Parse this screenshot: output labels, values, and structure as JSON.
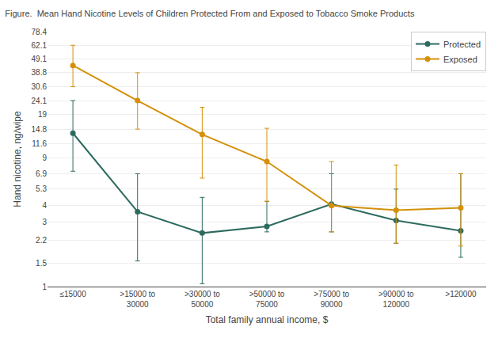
{
  "chart_data": {
    "type": "line",
    "title": "Figure.  Mean Hand Nicotine Levels of Children Protected From and Exposed to Tobacco Smoke Products",
    "xlabel": "Total family annual income, $",
    "ylabel": "Hand nicotine, ng/wipe",
    "categories": [
      "≤15000",
      ">15000 to\n30000",
      ">30000 to\n50000",
      ">50000 to\n75000",
      ">75000 to\n90000",
      ">90000 to\n120000",
      ">120000"
    ],
    "series": [
      {
        "name": "Protected",
        "color": "#2d6a5e",
        "marker": "circle",
        "line_style": "solid",
        "values": [
          13.8,
          3.6,
          2.5,
          2.8,
          4.1,
          3.1,
          2.6
        ],
        "low": [
          7.2,
          1.55,
          1.05,
          2.55,
          2.55,
          2.1,
          1.65
        ],
        "high": [
          24.1,
          6.9,
          4.6,
          4.3,
          6.9,
          5.3,
          6.9
        ]
      },
      {
        "name": "Exposed",
        "color": "#d4900a",
        "marker": "circle",
        "line_style": "solid",
        "values": [
          44.0,
          24.1,
          13.5,
          8.5,
          4.0,
          3.7,
          3.85
        ],
        "low": [
          30.6,
          14.8,
          6.4,
          4.3,
          2.55,
          2.1,
          2.0
        ],
        "high": [
          62.1,
          38.8,
          21.5,
          15.0,
          8.5,
          8.0,
          6.9
        ]
      }
    ],
    "log": "y",
    "ylim": [
      1.0,
      78.4
    ],
    "yticks": [
      1.0,
      1.5,
      2.2,
      3.0,
      4.0,
      5.3,
      6.9,
      9.0,
      11.6,
      14.8,
      19.0,
      24.1,
      30.6,
      38.8,
      49.1,
      62.1,
      78.4
    ],
    "grid": "y",
    "legend": "upper right"
  }
}
